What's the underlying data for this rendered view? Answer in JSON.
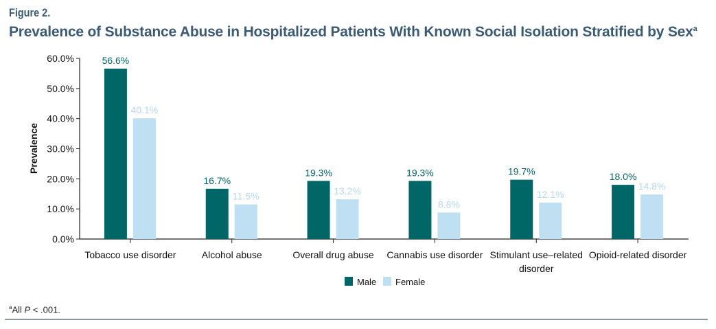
{
  "figure_label": "Figure 2.",
  "title": "Prevalence of Substance Abuse in Hospitalized Patients With Known Social Isolation Stratified by Sex",
  "title_superscript": "a",
  "footnote": {
    "marker": "a",
    "text_before": "All ",
    "italic": "P",
    "text_after": " < .001."
  },
  "chart_data": {
    "type": "bar",
    "title": "Prevalence of Substance Abuse in Hospitalized Patients With Known Social Isolation Stratified by Sex",
    "xlabel": "",
    "ylabel": "Prevalence",
    "ylim": [
      0,
      60
    ],
    "yticks": [
      "0.0%",
      "10.0%",
      "20.0%",
      "30.0%",
      "40.0%",
      "50.0%",
      "60.0%"
    ],
    "categories": [
      [
        "Tobacco use disorder"
      ],
      [
        "Alcohol abuse"
      ],
      [
        "Overall drug abuse"
      ],
      [
        "Cannabis use disorder"
      ],
      [
        "Stimulant use–related",
        "disorder"
      ],
      [
        "Opioid-related disorder"
      ]
    ],
    "series": [
      {
        "name": "Male",
        "color": "#006666",
        "label_color": "#006666",
        "values": [
          56.6,
          16.7,
          19.3,
          19.3,
          19.7,
          18.0
        ],
        "labels": [
          "56.6%",
          "16.7%",
          "19.3%",
          "19.3%",
          "19.7%",
          "18.0%"
        ]
      },
      {
        "name": "Female",
        "color": "#bfe0f3",
        "label_color": "#b5d8ee",
        "values": [
          40.1,
          11.5,
          13.2,
          8.8,
          12.1,
          14.8
        ],
        "labels": [
          "40.1%",
          "11.5%",
          "13.2%",
          "8.8%",
          "12.1%",
          "14.8%"
        ]
      }
    ],
    "grid": false,
    "legend_position": "bottom"
  }
}
